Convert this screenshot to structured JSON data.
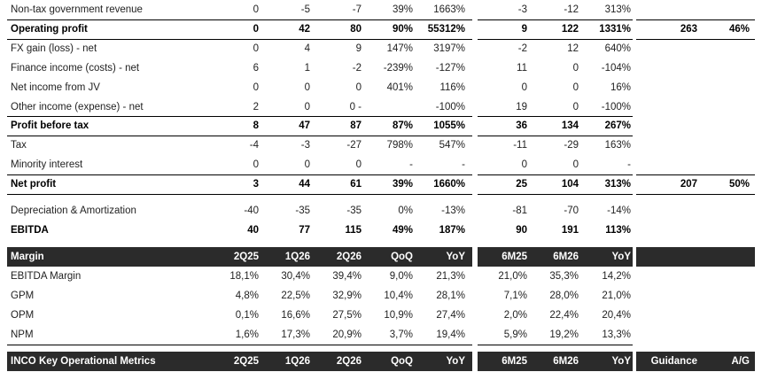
{
  "financials": [
    {
      "label": "Non-tax government revenue",
      "bold": false,
      "values": [
        "0",
        "-5",
        "-7",
        "39%",
        "1663%",
        "-3",
        "-12",
        "313%",
        "",
        ""
      ]
    },
    {
      "label": "Operating profit",
      "bold": true,
      "values": [
        "0",
        "42",
        "80",
        "90%",
        "55312%",
        "9",
        "122",
        "1331%",
        "263",
        "46%"
      ]
    },
    {
      "label": "FX gain (loss) - net",
      "bold": false,
      "values": [
        "0",
        "4",
        "9",
        "147%",
        "3197%",
        "-2",
        "12",
        "640%",
        "",
        ""
      ]
    },
    {
      "label": "Finance income (costs) - net",
      "bold": false,
      "values": [
        "6",
        "1",
        "-2",
        "-239%",
        "-127%",
        "11",
        "0",
        "-104%",
        "",
        ""
      ]
    },
    {
      "label": "Net income from JV",
      "bold": false,
      "values": [
        "0",
        "0",
        "0",
        "401%",
        "116%",
        "0",
        "0",
        "16%",
        "",
        ""
      ]
    },
    {
      "label": "Other income (expense) - net",
      "bold": false,
      "values": [
        "2",
        "0",
        "0 -",
        "",
        "-100%",
        "19",
        "0",
        "-100%",
        "",
        ""
      ]
    },
    {
      "label": "Profit before tax",
      "bold": true,
      "values": [
        "8",
        "47",
        "87",
        "87%",
        "1055%",
        "36",
        "134",
        "267%",
        "",
        ""
      ]
    },
    {
      "label": "Tax",
      "bold": false,
      "values": [
        "-4",
        "-3",
        "-27",
        "798%",
        "547%",
        "-11",
        "-29",
        "163%",
        "",
        ""
      ]
    },
    {
      "label": "Minority interest",
      "bold": false,
      "values": [
        "0",
        "0",
        "0",
        "-",
        "-",
        "0",
        "0",
        "-",
        "",
        ""
      ]
    },
    {
      "label": "Net profit",
      "bold": true,
      "values": [
        "3",
        "44",
        "61",
        "39%",
        "1660%",
        "25",
        "104",
        "313%",
        "207",
        "50%"
      ]
    }
  ],
  "ebitda_block": [
    {
      "label": "Depreciation & Amortization",
      "bold": false,
      "values": [
        "-40",
        "-35",
        "-35",
        "0%",
        "-13%",
        "-81",
        "-70",
        "-14%",
        "",
        ""
      ]
    },
    {
      "label": "EBITDA",
      "bold": true,
      "values": [
        "40",
        "77",
        "115",
        "49%",
        "187%",
        "90",
        "191",
        "113%",
        "",
        ""
      ]
    }
  ],
  "margin_header": {
    "label": "Margin",
    "values": [
      "2Q25",
      "1Q26",
      "2Q26",
      "QoQ",
      "YoY",
      "6M25",
      "6M26",
      "YoY",
      "",
      ""
    ]
  },
  "margins": [
    {
      "label": "EBITDA Margin",
      "bold": false,
      "values": [
        "18,1%",
        "30,4%",
        "39,4%",
        "9,0%",
        "21,3%",
        "21,0%",
        "35,3%",
        "14,2%",
        "",
        ""
      ]
    },
    {
      "label": "GPM",
      "bold": false,
      "values": [
        "4,8%",
        "22,5%",
        "32,9%",
        "10,4%",
        "28,1%",
        "7,1%",
        "28,0%",
        "21,0%",
        "",
        ""
      ]
    },
    {
      "label": "OPM",
      "bold": false,
      "values": [
        "0,1%",
        "16,6%",
        "27,5%",
        "10,9%",
        "27,4%",
        "2,0%",
        "22,4%",
        "20,4%",
        "",
        ""
      ]
    },
    {
      "label": "NPM",
      "bold": false,
      "values": [
        "1,6%",
        "17,3%",
        "20,9%",
        "3,7%",
        "19,4%",
        "5,9%",
        "19,2%",
        "13,3%",
        "",
        ""
      ]
    }
  ],
  "ops_header": {
    "label": "INCO Key Operational Metrics",
    "values": [
      "2Q25",
      "1Q26",
      "2Q26",
      "QoQ",
      "YoY",
      "6M25",
      "6M26",
      "YoY",
      "Guidance",
      "A/G"
    ]
  }
}
